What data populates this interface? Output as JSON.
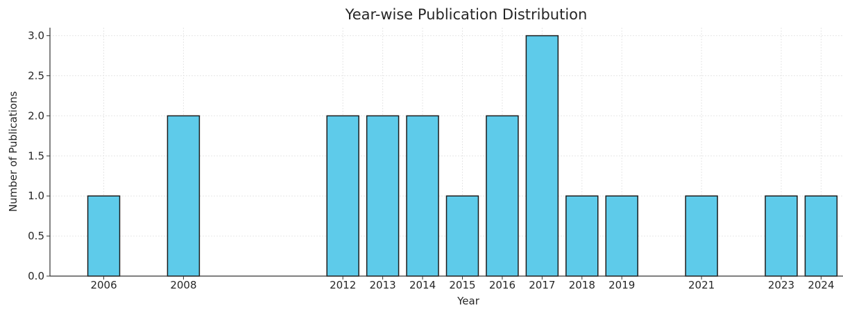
{
  "chart_data": {
    "type": "bar",
    "title": "Year-wise Publication Distribution",
    "xlabel": "Year",
    "ylabel": "Number of Publications",
    "categories": [
      "2006",
      "2008",
      "2012",
      "2013",
      "2014",
      "2015",
      "2016",
      "2017",
      "2018",
      "2019",
      "2021",
      "2023",
      "2024"
    ],
    "x": [
      2006,
      2008,
      2012,
      2013,
      2014,
      2015,
      2016,
      2017,
      2018,
      2019,
      2021,
      2023,
      2024
    ],
    "values": [
      1,
      2,
      2,
      2,
      2,
      1,
      2,
      3,
      1,
      1,
      1,
      1,
      1
    ],
    "ylim": [
      0,
      3.1
    ],
    "xlim": [
      2004.65,
      2024.55
    ],
    "yticks": [
      0.0,
      0.5,
      1.0,
      1.5,
      2.0,
      2.5,
      3.0
    ],
    "ytick_labels": [
      "0.0",
      "0.5",
      "1.0",
      "1.5",
      "2.0",
      "2.5",
      "3.0"
    ],
    "grid": true,
    "bar_color": "#5ecbea",
    "edge_color": "#1a1a1a"
  }
}
